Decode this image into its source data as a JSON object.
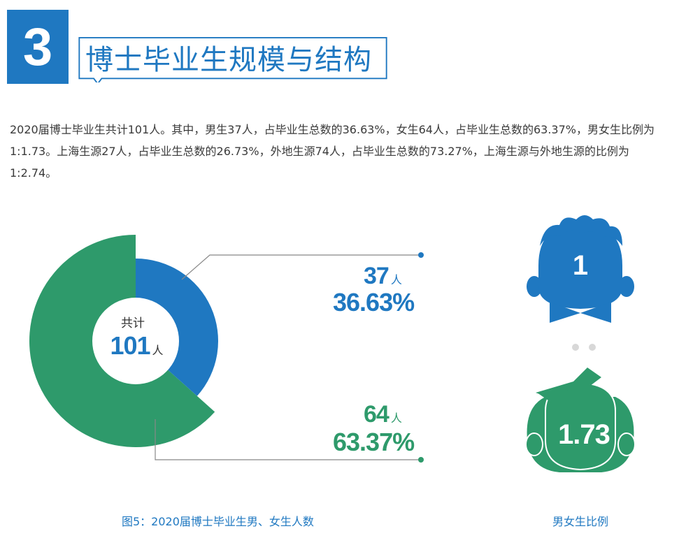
{
  "header": {
    "section_number": "3",
    "title": "博士毕业生规模与结构"
  },
  "description": "2020届博士毕业生共计101人。其中，男生37人，占毕业生总数的36.63%，女生64人，占毕业生总数的63.37%，男女生比例为1:1.73。上海生源27人，占毕业生总数的26.73%，外地生源74人，占毕业生总数的73.27%，上海生源与外地生源的比例为1:2.74。",
  "chart_data": [
    {
      "type": "pie",
      "title": "图5：2020届博士毕业生男、女生人数",
      "center_label": "共计",
      "center_value": "101",
      "center_unit": "人",
      "categories": [
        "男",
        "女"
      ],
      "series": [
        {
          "values": [
            37,
            64
          ]
        }
      ],
      "labels": [
        {
          "count": "37",
          "unit": "人",
          "percent": "36.63%"
        },
        {
          "count": "64",
          "unit": "人",
          "percent": "63.37%"
        }
      ],
      "colors": [
        "#1f78c1",
        "#2e9a6b"
      ]
    },
    {
      "type": "table",
      "title": "男女生比例",
      "male_value": "1",
      "female_value": "1.73",
      "colors": {
        "male": "#1f78c1",
        "female": "#2e9a6b"
      }
    }
  ],
  "colors": {
    "accent_blue": "#1f78c1",
    "accent_green": "#2e9a6b",
    "line_gray": "#888888",
    "dot_gray": "#d8d8d8"
  },
  "icons": [
    "male-head-icon",
    "female-head-icon",
    "separator-dots-icon"
  ]
}
